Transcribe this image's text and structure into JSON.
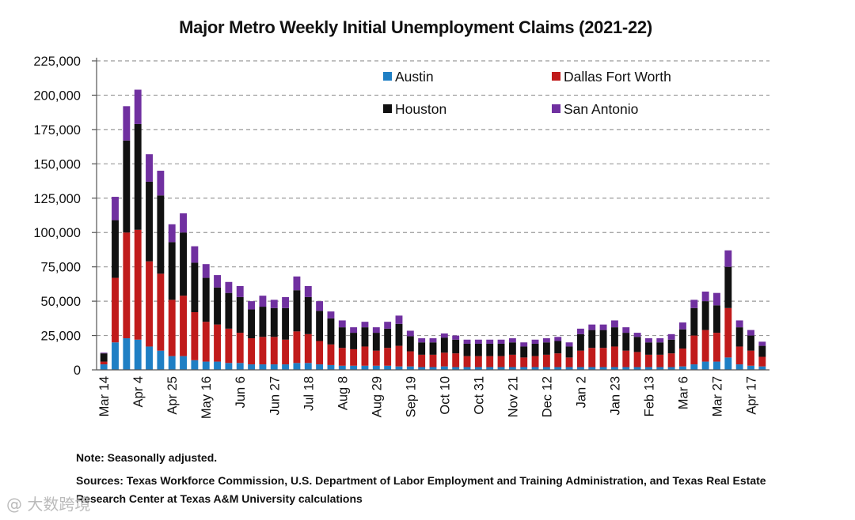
{
  "chart_data": {
    "type": "bar",
    "stacked": true,
    "title": "Major Metro Weekly Initial Unemployment Claims (2021-22)",
    "xlabel": "",
    "ylabel": "",
    "ylim": [
      0,
      225000
    ],
    "yticks": [
      "0",
      "25,000",
      "50,000",
      "75,000",
      "100,000",
      "125,000",
      "150,000",
      "175,000",
      "200,000",
      "225,000"
    ],
    "ytick_values": [
      0,
      25000,
      50000,
      75000,
      100000,
      125000,
      150000,
      175000,
      200000,
      225000
    ],
    "grid": true,
    "legend_position": "top-right",
    "x_tick_labels": [
      {
        "index": 0,
        "label": "Mar 14"
      },
      {
        "index": 3,
        "label": "Apr 4"
      },
      {
        "index": 6,
        "label": "Apr 25"
      },
      {
        "index": 9,
        "label": "May 16"
      },
      {
        "index": 12,
        "label": "Jun 6"
      },
      {
        "index": 15,
        "label": "Jun 27"
      },
      {
        "index": 18,
        "label": "Jul 18"
      },
      {
        "index": 21,
        "label": "Aug 8"
      },
      {
        "index": 24,
        "label": "Aug 29"
      },
      {
        "index": 27,
        "label": "Sep 19"
      },
      {
        "index": 30,
        "label": "Oct 10"
      },
      {
        "index": 33,
        "label": "Oct 31"
      },
      {
        "index": 36,
        "label": "Nov 21"
      },
      {
        "index": 39,
        "label": "Dec 12"
      },
      {
        "index": 42,
        "label": "Jan 2"
      },
      {
        "index": 45,
        "label": "Jan 23"
      },
      {
        "index": 48,
        "label": "Feb 13"
      },
      {
        "index": 51,
        "label": "Mar 6"
      },
      {
        "index": 54,
        "label": "Mar 27"
      },
      {
        "index": 57,
        "label": "Apr 17"
      }
    ],
    "series": [
      {
        "name": "Austin",
        "color": "#1f7fc4",
        "values": [
          4000,
          20000,
          23000,
          22000,
          17000,
          14000,
          10000,
          10000,
          7000,
          6000,
          6000,
          5000,
          5000,
          4000,
          4000,
          4000,
          4000,
          5000,
          5000,
          4000,
          3500,
          3000,
          3000,
          3000,
          3000,
          3000,
          2500,
          2500,
          2000,
          2000,
          2500,
          2000,
          2000,
          2000,
          2000,
          2000,
          2000,
          2000,
          2000,
          2000,
          2000,
          2000,
          2000,
          2000,
          2000,
          2000,
          2000,
          2000,
          2000,
          2000,
          2000,
          2500,
          4000,
          6000,
          6000,
          9000,
          4000,
          3000,
          2500
        ]
      },
      {
        "name": "Dallas Fort Worth",
        "color": "#c01b1b",
        "values": [
          2000,
          47000,
          77000,
          80000,
          62000,
          56000,
          41000,
          44000,
          35000,
          29000,
          27000,
          25000,
          22000,
          19000,
          20000,
          20000,
          18000,
          23000,
          21000,
          17000,
          15000,
          13000,
          12000,
          14000,
          11000,
          13000,
          15000,
          11000,
          9000,
          9000,
          10000,
          10000,
          8000,
          8000,
          8000,
          8000,
          9000,
          7000,
          8000,
          9000,
          10000,
          7000,
          12000,
          14000,
          14000,
          15000,
          12000,
          11000,
          9000,
          9000,
          10000,
          13000,
          21000,
          23000,
          21000,
          36000,
          13000,
          11000,
          7000
        ]
      },
      {
        "name": "Houston",
        "color": "#111111",
        "values": [
          6000,
          42000,
          67000,
          77000,
          58000,
          57000,
          42000,
          46000,
          36000,
          32000,
          27000,
          26000,
          26000,
          21000,
          22000,
          21000,
          23000,
          30000,
          27000,
          22000,
          19000,
          15000,
          12000,
          14000,
          13000,
          14000,
          16000,
          11000,
          9000,
          9000,
          11000,
          10000,
          9000,
          9000,
          9000,
          9000,
          9000,
          8000,
          9000,
          9000,
          9000,
          8000,
          12000,
          13000,
          13000,
          14000,
          13000,
          11000,
          9000,
          9000,
          10000,
          14000,
          20000,
          21000,
          20000,
          30000,
          14000,
          11000,
          8000
        ]
      },
      {
        "name": "San Antonio",
        "color": "#7030a0",
        "values": [
          500,
          17000,
          25000,
          25000,
          20000,
          18000,
          13000,
          14000,
          12000,
          10000,
          9000,
          8000,
          8000,
          6000,
          8000,
          6000,
          8000,
          10000,
          8000,
          7000,
          5000,
          5000,
          4000,
          4000,
          4000,
          5000,
          6000,
          4000,
          3000,
          3000,
          3000,
          3000,
          3000,
          3000,
          3000,
          3000,
          3000,
          3000,
          3000,
          3000,
          3000,
          3000,
          4000,
          4000,
          4000,
          5000,
          4000,
          3000,
          3000,
          3000,
          4000,
          5000,
          6000,
          7000,
          9000,
          12000,
          5000,
          4000,
          3000
        ]
      }
    ]
  },
  "notes": {
    "line1": "Note: Seasonally adjusted.",
    "line2": "Sources: Texas Workforce Commission, U.S. Department of Labor Employment and Training Administration, and Texas Real Estate Research Center at Texas A&M University calculations"
  },
  "watermark": "@ 大数跨境"
}
